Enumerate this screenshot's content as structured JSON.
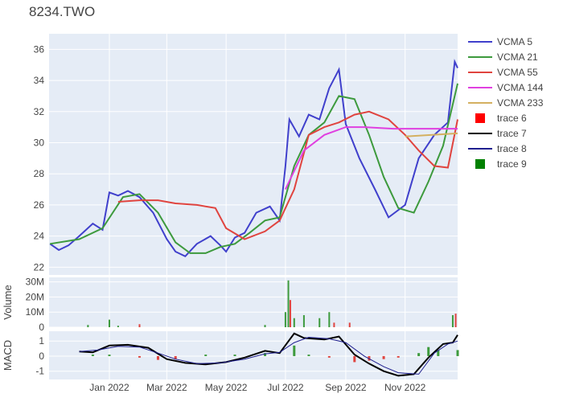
{
  "title": "8234.TWO",
  "colors": {
    "vcma5": "#4040cc",
    "vcma21": "#3d9a3d",
    "vcma55": "#e0443f",
    "vcma144": "#e040e0",
    "vcma233": "#d4b060",
    "up": "#3d9a3d",
    "down": "#e0443f",
    "macd": "#000000",
    "signal": "#1f1f8f",
    "plot_bg": "#e5ecf6"
  },
  "chart_data": {
    "type": "line",
    "title": "8234.TWO",
    "x_ticks": [
      "Jan 2022",
      "Mar 2022",
      "May 2022",
      "Jul 2022",
      "Sep 2022",
      "Nov 2022"
    ],
    "x_tick_dates": [
      "2022-01-01",
      "2022-03-01",
      "2022-05-01",
      "2022-07-01",
      "2022-09-01",
      "2022-11-01"
    ],
    "x_range": [
      "2021-10-31",
      "2022-12-25"
    ],
    "legend": [
      "VCMA 5",
      "VCMA 21",
      "VCMA 55",
      "VCMA 144",
      "VCMA 233",
      "trace 6",
      "trace 7",
      "trace 8",
      "trace 9"
    ],
    "panels": [
      {
        "name": "price",
        "ylim": [
          21.5,
          37
        ],
        "y_ticks": [
          22,
          24,
          26,
          28,
          30,
          32,
          34,
          36
        ],
        "series": [
          {
            "name": "VCMA 5",
            "color_key": "vcma5",
            "points": [
              [
                "2021-11-01",
                23.5
              ],
              [
                "2021-11-10",
                23.1
              ],
              [
                "2021-11-20",
                23.4
              ],
              [
                "2021-12-01",
                24.0
              ],
              [
                "2021-12-15",
                24.8
              ],
              [
                "2021-12-25",
                24.4
              ],
              [
                "2022-01-01",
                26.8
              ],
              [
                "2022-01-10",
                26.6
              ],
              [
                "2022-01-20",
                26.9
              ],
              [
                "2022-02-01",
                26.5
              ],
              [
                "2022-02-15",
                25.5
              ],
              [
                "2022-03-01",
                23.8
              ],
              [
                "2022-03-10",
                23.0
              ],
              [
                "2022-03-20",
                22.7
              ],
              [
                "2022-04-01",
                23.5
              ],
              [
                "2022-04-15",
                24.0
              ],
              [
                "2022-04-25",
                23.4
              ],
              [
                "2022-05-01",
                23.0
              ],
              [
                "2022-05-10",
                23.9
              ],
              [
                "2022-05-20",
                24.2
              ],
              [
                "2022-06-01",
                25.5
              ],
              [
                "2022-06-15",
                25.9
              ],
              [
                "2022-06-25",
                25.0
              ],
              [
                "2022-07-01",
                28.5
              ],
              [
                "2022-07-05",
                31.5
              ],
              [
                "2022-07-15",
                30.4
              ],
              [
                "2022-07-25",
                31.8
              ],
              [
                "2022-08-05",
                31.5
              ],
              [
                "2022-08-15",
                33.5
              ],
              [
                "2022-08-25",
                34.7
              ],
              [
                "2022-09-01",
                31.2
              ],
              [
                "2022-09-15",
                29.0
              ],
              [
                "2022-10-01",
                27.0
              ],
              [
                "2022-10-15",
                25.2
              ],
              [
                "2022-11-01",
                26.0
              ],
              [
                "2022-11-15",
                29.0
              ],
              [
                "2022-12-01",
                30.5
              ],
              [
                "2022-12-15",
                31.3
              ],
              [
                "2022-12-22",
                35.2
              ],
              [
                "2022-12-25",
                34.8
              ]
            ]
          },
          {
            "name": "VCMA 21",
            "color_key": "vcma21",
            "points": [
              [
                "2021-11-01",
                23.5
              ],
              [
                "2021-12-01",
                23.8
              ],
              [
                "2021-12-25",
                24.5
              ],
              [
                "2022-01-15",
                26.5
              ],
              [
                "2022-02-01",
                26.7
              ],
              [
                "2022-02-20",
                25.5
              ],
              [
                "2022-03-10",
                23.6
              ],
              [
                "2022-03-25",
                22.9
              ],
              [
                "2022-04-10",
                22.9
              ],
              [
                "2022-04-25",
                23.3
              ],
              [
                "2022-05-10",
                23.5
              ],
              [
                "2022-05-25",
                24.2
              ],
              [
                "2022-06-10",
                25.0
              ],
              [
                "2022-06-25",
                25.2
              ],
              [
                "2022-07-10",
                28.5
              ],
              [
                "2022-07-25",
                30.5
              ],
              [
                "2022-08-10",
                31.3
              ],
              [
                "2022-08-25",
                33.0
              ],
              [
                "2022-09-10",
                32.8
              ],
              [
                "2022-09-25",
                30.5
              ],
              [
                "2022-10-10",
                27.8
              ],
              [
                "2022-10-25",
                25.8
              ],
              [
                "2022-11-10",
                25.5
              ],
              [
                "2022-11-25",
                27.5
              ],
              [
                "2022-12-10",
                29.8
              ],
              [
                "2022-12-25",
                33.8
              ]
            ]
          },
          {
            "name": "VCMA 55",
            "color_key": "vcma55",
            "points": [
              [
                "2022-01-10",
                26.2
              ],
              [
                "2022-02-01",
                26.3
              ],
              [
                "2022-02-20",
                26.3
              ],
              [
                "2022-03-10",
                26.1
              ],
              [
                "2022-04-01",
                26.0
              ],
              [
                "2022-04-20",
                25.8
              ],
              [
                "2022-05-01",
                24.5
              ],
              [
                "2022-05-20",
                23.8
              ],
              [
                "2022-06-10",
                24.3
              ],
              [
                "2022-06-25",
                25.0
              ],
              [
                "2022-07-10",
                27.0
              ],
              [
                "2022-07-25",
                30.5
              ],
              [
                "2022-08-10",
                31.0
              ],
              [
                "2022-08-25",
                31.3
              ],
              [
                "2022-09-10",
                31.8
              ],
              [
                "2022-09-25",
                32.0
              ],
              [
                "2022-10-15",
                31.5
              ],
              [
                "2022-11-01",
                30.5
              ],
              [
                "2022-11-15",
                29.5
              ],
              [
                "2022-12-01",
                28.5
              ],
              [
                "2022-12-15",
                28.4
              ],
              [
                "2022-12-25",
                31.5
              ]
            ]
          },
          {
            "name": "VCMA 144",
            "color_key": "vcma144",
            "points": [
              [
                "2022-07-01",
                27.0
              ],
              [
                "2022-07-20",
                29.5
              ],
              [
                "2022-08-10",
                30.5
              ],
              [
                "2022-09-01",
                31.0
              ],
              [
                "2022-09-20",
                31.0
              ],
              [
                "2022-10-20",
                30.9
              ],
              [
                "2022-11-20",
                30.9
              ],
              [
                "2022-12-25",
                30.9
              ]
            ]
          },
          {
            "name": "VCMA 233",
            "color_key": "vcma233",
            "points": [
              [
                "2022-11-01",
                30.4
              ],
              [
                "2022-12-25",
                30.6
              ]
            ]
          }
        ]
      },
      {
        "name": "volume",
        "ylabel": "Volume",
        "ylim": [
          0,
          33000000
        ],
        "y_ticks": [
          0,
          10000000,
          20000000,
          30000000
        ],
        "y_tick_labels": [
          "0",
          "10M",
          "20M",
          "30M"
        ],
        "bars": [
          [
            "2021-12-10",
            1500000,
            "up"
          ],
          [
            "2022-01-01",
            5000000,
            "up"
          ],
          [
            "2022-01-10",
            1000000,
            "up"
          ],
          [
            "2022-02-01",
            2000000,
            "down"
          ],
          [
            "2022-06-10",
            1500000,
            "up"
          ],
          [
            "2022-07-01",
            10000000,
            "up"
          ],
          [
            "2022-07-04",
            31000000,
            "up"
          ],
          [
            "2022-07-06",
            18000000,
            "down"
          ],
          [
            "2022-07-10",
            6000000,
            "up"
          ],
          [
            "2022-07-20",
            8000000,
            "up"
          ],
          [
            "2022-08-05",
            6000000,
            "up"
          ],
          [
            "2022-08-15",
            10000000,
            "up"
          ],
          [
            "2022-08-20",
            3000000,
            "down"
          ],
          [
            "2022-09-05",
            3000000,
            "down"
          ],
          [
            "2022-12-20",
            8000000,
            "up"
          ],
          [
            "2022-12-23",
            9000000,
            "down"
          ]
        ]
      },
      {
        "name": "macd",
        "ylabel": "MACD",
        "ylim": [
          -1.55,
          1.65
        ],
        "y_ticks": [
          -1,
          0,
          1
        ],
        "series": [
          {
            "name": "trace 7",
            "color_key": "macd",
            "points": [
              [
                "2021-12-01",
                0.3
              ],
              [
                "2021-12-15",
                0.25
              ],
              [
                "2022-01-01",
                0.7
              ],
              [
                "2022-01-20",
                0.75
              ],
              [
                "2022-02-10",
                0.55
              ],
              [
                "2022-03-01",
                -0.2
              ],
              [
                "2022-03-20",
                -0.45
              ],
              [
                "2022-04-10",
                -0.55
              ],
              [
                "2022-05-01",
                -0.4
              ],
              [
                "2022-05-20",
                -0.1
              ],
              [
                "2022-06-10",
                0.35
              ],
              [
                "2022-06-25",
                0.2
              ],
              [
                "2022-07-10",
                1.5
              ],
              [
                "2022-07-20",
                1.2
              ],
              [
                "2022-08-10",
                1.1
              ],
              [
                "2022-08-25",
                1.3
              ],
              [
                "2022-09-10",
                0.1
              ],
              [
                "2022-09-25",
                -0.5
              ],
              [
                "2022-10-10",
                -1.0
              ],
              [
                "2022-10-25",
                -1.3
              ],
              [
                "2022-11-10",
                -1.2
              ],
              [
                "2022-11-25",
                -0.1
              ],
              [
                "2022-12-10",
                0.8
              ],
              [
                "2022-12-20",
                0.9
              ],
              [
                "2022-12-25",
                1.4
              ]
            ]
          },
          {
            "name": "trace 8",
            "color_key": "signal",
            "points": [
              [
                "2021-12-01",
                0.3
              ],
              [
                "2021-12-20",
                0.4
              ],
              [
                "2022-01-10",
                0.65
              ],
              [
                "2022-02-01",
                0.6
              ],
              [
                "2022-02-20",
                0.2
              ],
              [
                "2022-03-10",
                -0.2
              ],
              [
                "2022-04-01",
                -0.5
              ],
              [
                "2022-04-25",
                -0.45
              ],
              [
                "2022-05-20",
                -0.2
              ],
              [
                "2022-06-10",
                0.15
              ],
              [
                "2022-06-25",
                0.25
              ],
              [
                "2022-07-10",
                0.9
              ],
              [
                "2022-07-25",
                1.25
              ],
              [
                "2022-08-15",
                1.15
              ],
              [
                "2022-09-01",
                0.9
              ],
              [
                "2022-09-20",
                0.0
              ],
              [
                "2022-10-10",
                -0.7
              ],
              [
                "2022-10-25",
                -1.1
              ],
              [
                "2022-11-15",
                -1.2
              ],
              [
                "2022-12-01",
                0.2
              ],
              [
                "2022-12-15",
                0.8
              ],
              [
                "2022-12-25",
                1.0
              ]
            ]
          }
        ],
        "histogram": [
          [
            "2021-12-15",
            0.1
          ],
          [
            "2022-01-01",
            0.1
          ],
          [
            "2022-02-01",
            -0.1
          ],
          [
            "2022-02-20",
            -0.25
          ],
          [
            "2022-03-10",
            -0.2
          ],
          [
            "2022-04-10",
            0.1
          ],
          [
            "2022-05-10",
            0.1
          ],
          [
            "2022-06-10",
            0.2
          ],
          [
            "2022-07-10",
            0.7
          ],
          [
            "2022-07-25",
            0.1
          ],
          [
            "2022-08-15",
            -0.1
          ],
          [
            "2022-09-10",
            -0.4
          ],
          [
            "2022-09-25",
            -0.3
          ],
          [
            "2022-10-10",
            -0.2
          ],
          [
            "2022-10-25",
            -0.1
          ],
          [
            "2022-11-15",
            0.2
          ],
          [
            "2022-11-25",
            0.6
          ],
          [
            "2022-12-05",
            0.4
          ],
          [
            "2022-12-25",
            0.4
          ]
        ]
      }
    ]
  }
}
